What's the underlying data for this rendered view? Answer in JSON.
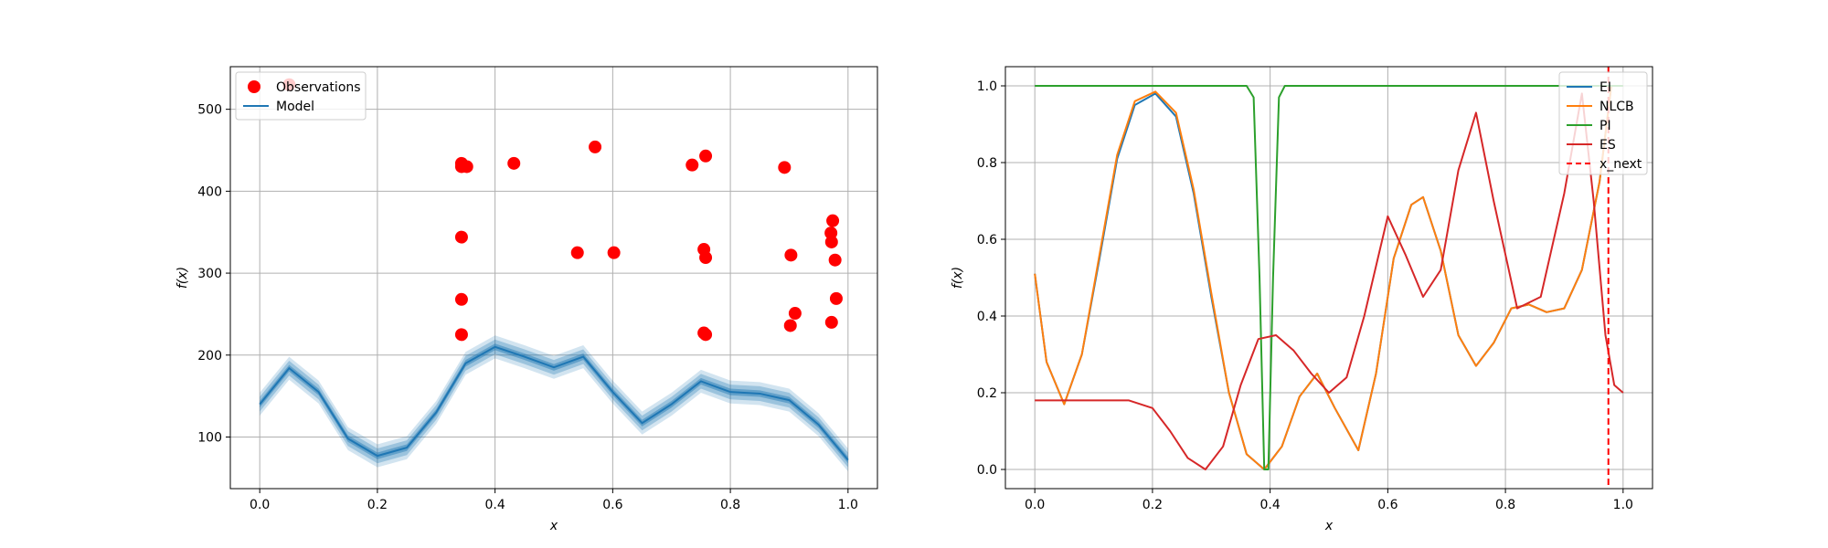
{
  "colors": {
    "observations": "#ff0000",
    "model": "#1f77b4",
    "ei": "#1f77b4",
    "nlcb": "#ff7f0e",
    "pi": "#2ca02c",
    "es": "#d62728",
    "x_next": "#ff0000",
    "grid": "#b0b0b0"
  },
  "chart_data": [
    {
      "type": "scatter",
      "xlabel": "x",
      "ylabel": "f(x)",
      "xlim": [
        -0.05,
        1.05
      ],
      "ylim": [
        37,
        552
      ],
      "xticks": [
        0.0,
        0.2,
        0.4,
        0.6,
        0.8,
        1.0
      ],
      "xtick_labels": [
        "0.0",
        "0.2",
        "0.4",
        "0.6",
        "0.8",
        "1.0"
      ],
      "yticks": [
        100,
        200,
        300,
        400,
        500
      ],
      "ytick_labels": [
        "100",
        "200",
        "300",
        "400",
        "500"
      ],
      "grid": true,
      "legend": {
        "position": "top-left",
        "entries": [
          "Observations",
          "Model"
        ]
      },
      "observations": {
        "name": "Observations",
        "points": [
          [
            0.05,
            530
          ],
          [
            0.343,
            434
          ],
          [
            0.343,
            430
          ],
          [
            0.352,
            430
          ],
          [
            0.343,
            344
          ],
          [
            0.343,
            268
          ],
          [
            0.343,
            225
          ],
          [
            0.432,
            434
          ],
          [
            0.54,
            325
          ],
          [
            0.57,
            454
          ],
          [
            0.602,
            325
          ],
          [
            0.735,
            432
          ],
          [
            0.758,
            443
          ],
          [
            0.755,
            329
          ],
          [
            0.758,
            319
          ],
          [
            0.755,
            227
          ],
          [
            0.758,
            225
          ],
          [
            0.892,
            429
          ],
          [
            0.903,
            322
          ],
          [
            0.902,
            236
          ],
          [
            0.91,
            251
          ],
          [
            0.974,
            364
          ],
          [
            0.971,
            349
          ],
          [
            0.972,
            338
          ],
          [
            0.978,
            316
          ],
          [
            0.98,
            269
          ],
          [
            0.972,
            240
          ]
        ]
      },
      "model": {
        "name": "Model",
        "x": [
          0.0,
          0.05,
          0.1,
          0.15,
          0.2,
          0.25,
          0.3,
          0.35,
          0.4,
          0.45,
          0.5,
          0.55,
          0.6,
          0.65,
          0.7,
          0.75,
          0.8,
          0.85,
          0.9,
          0.95,
          1.0
        ],
        "y": [
          140,
          184,
          155,
          98,
          77,
          87,
          130,
          190,
          210,
          198,
          185,
          198,
          155,
          117,
          140,
          168,
          155,
          153,
          145,
          115,
          72
        ],
        "band_widths": [
          4,
          9,
          14
        ]
      }
    },
    {
      "type": "line",
      "xlabel": "x",
      "ylabel": "f(x)",
      "xlim": [
        -0.05,
        1.05
      ],
      "ylim": [
        -0.05,
        1.05
      ],
      "xticks": [
        0.0,
        0.2,
        0.4,
        0.6,
        0.8,
        1.0
      ],
      "xtick_labels": [
        "0.0",
        "0.2",
        "0.4",
        "0.6",
        "0.8",
        "1.0"
      ],
      "yticks": [
        0.0,
        0.2,
        0.4,
        0.6,
        0.8,
        1.0
      ],
      "ytick_labels": [
        "0.0",
        "0.2",
        "0.4",
        "0.6",
        "0.8",
        "1.0"
      ],
      "grid": true,
      "legend": {
        "position": "top-right",
        "entries": [
          "EI",
          "NLCB",
          "PI",
          "ES",
          "x_next"
        ]
      },
      "series": [
        {
          "name": "EI",
          "x": [
            0.0,
            0.02,
            0.05,
            0.08,
            0.11,
            0.14,
            0.17,
            0.205,
            0.24,
            0.27,
            0.3,
            0.33,
            0.36,
            0.39,
            0.42,
            0.45,
            0.48,
            0.51,
            0.55,
            0.58,
            0.61,
            0.64,
            0.66,
            0.69,
            0.72,
            0.75,
            0.78,
            0.81,
            0.84,
            0.87,
            0.9,
            0.93,
            0.96,
            0.98
          ],
          "y": [
            0.51,
            0.28,
            0.17,
            0.3,
            0.55,
            0.81,
            0.95,
            0.98,
            0.92,
            0.72,
            0.45,
            0.2,
            0.04,
            0.0,
            0.06,
            0.19,
            0.25,
            0.16,
            0.05,
            0.25,
            0.55,
            0.69,
            0.71,
            0.57,
            0.35,
            0.27,
            0.33,
            0.42,
            0.43,
            0.41,
            0.42,
            0.52,
            0.75,
            1.0
          ]
        },
        {
          "name": "NLCB",
          "x": [
            0.0,
            0.02,
            0.05,
            0.08,
            0.11,
            0.14,
            0.17,
            0.205,
            0.24,
            0.27,
            0.3,
            0.33,
            0.36,
            0.39,
            0.42,
            0.45,
            0.48,
            0.51,
            0.55,
            0.58,
            0.61,
            0.64,
            0.66,
            0.69,
            0.72,
            0.75,
            0.78,
            0.81,
            0.84,
            0.87,
            0.9,
            0.93,
            0.96,
            0.98
          ],
          "y": [
            0.51,
            0.28,
            0.17,
            0.3,
            0.56,
            0.82,
            0.96,
            0.985,
            0.93,
            0.73,
            0.46,
            0.2,
            0.04,
            0.0,
            0.06,
            0.19,
            0.25,
            0.16,
            0.05,
            0.25,
            0.55,
            0.69,
            0.71,
            0.57,
            0.35,
            0.27,
            0.33,
            0.42,
            0.43,
            0.41,
            0.42,
            0.52,
            0.75,
            1.0
          ]
        },
        {
          "name": "PI",
          "x": [
            0.0,
            0.36,
            0.372,
            0.382,
            0.39,
            0.397,
            0.405,
            0.415,
            0.425,
            1.0
          ],
          "y": [
            1.0,
            1.0,
            0.97,
            0.5,
            0.0,
            0.0,
            0.5,
            0.97,
            1.0,
            1.0
          ]
        },
        {
          "name": "ES",
          "x": [
            0.0,
            0.04,
            0.08,
            0.12,
            0.16,
            0.2,
            0.23,
            0.26,
            0.29,
            0.32,
            0.35,
            0.38,
            0.41,
            0.44,
            0.47,
            0.5,
            0.53,
            0.56,
            0.6,
            0.63,
            0.66,
            0.69,
            0.72,
            0.75,
            0.78,
            0.82,
            0.86,
            0.9,
            0.93,
            0.95,
            0.97,
            0.985,
            1.0
          ],
          "y": [
            0.18,
            0.18,
            0.18,
            0.18,
            0.18,
            0.16,
            0.1,
            0.03,
            0.0,
            0.06,
            0.22,
            0.34,
            0.35,
            0.31,
            0.25,
            0.2,
            0.24,
            0.4,
            0.66,
            0.56,
            0.45,
            0.52,
            0.78,
            0.93,
            0.7,
            0.42,
            0.45,
            0.72,
            0.98,
            0.7,
            0.35,
            0.22,
            0.2
          ]
        }
      ],
      "x_next": {
        "name": "x_next",
        "x": 0.975
      }
    }
  ]
}
